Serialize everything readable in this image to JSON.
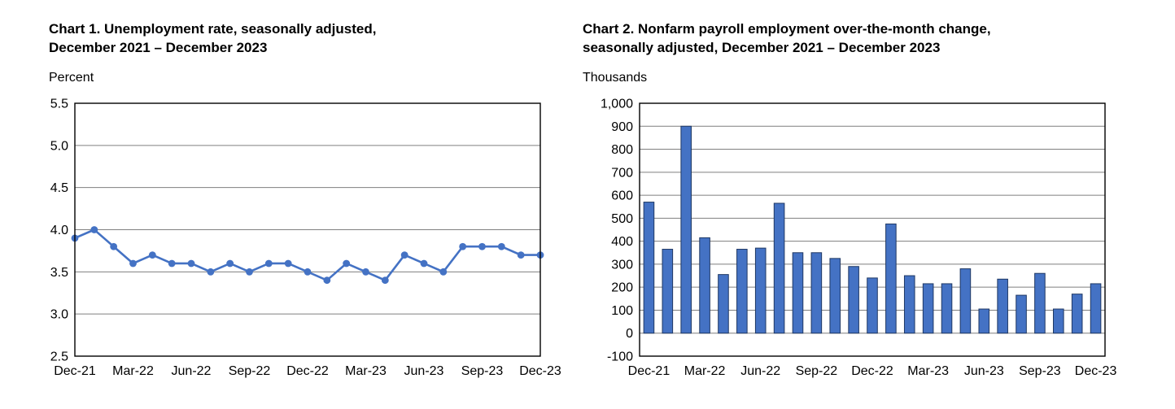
{
  "charts": [
    {
      "title_line1": "Chart 1. Unemployment rate, seasonally adjusted,",
      "title_line2": "December 2021 – December 2023",
      "unit_label": "Percent"
    },
    {
      "title_line1": "Chart 2. Nonfarm payroll employment over-the-month change,",
      "title_line2": "seasonally adjusted, December 2021 – December 2023",
      "unit_label": "Thousands"
    }
  ],
  "chart_data": [
    {
      "type": "line",
      "title": "Chart 1. Unemployment rate, seasonally adjusted, December 2021 – December 2023",
      "ylabel": "Percent",
      "xlabel": "",
      "categories": [
        "Dec-21",
        "Jan-22",
        "Feb-22",
        "Mar-22",
        "Apr-22",
        "May-22",
        "Jun-22",
        "Jul-22",
        "Aug-22",
        "Sep-22",
        "Oct-22",
        "Nov-22",
        "Dec-22",
        "Jan-23",
        "Feb-23",
        "Mar-23",
        "Apr-23",
        "May-23",
        "Jun-23",
        "Jul-23",
        "Aug-23",
        "Sep-23",
        "Oct-23",
        "Nov-23",
        "Dec-23"
      ],
      "values": [
        3.9,
        4.0,
        3.8,
        3.6,
        3.7,
        3.6,
        3.6,
        3.5,
        3.6,
        3.5,
        3.6,
        3.6,
        3.5,
        3.4,
        3.6,
        3.5,
        3.4,
        3.7,
        3.6,
        3.5,
        3.8,
        3.8,
        3.8,
        3.7,
        3.7
      ],
      "ylim": [
        2.5,
        5.5
      ],
      "yticks": [
        2.5,
        3.0,
        3.5,
        4.0,
        4.5,
        5.0,
        5.5
      ],
      "ytick_labels": [
        "2.5",
        "3.0",
        "3.5",
        "4.0",
        "4.5",
        "5.0",
        "5.5"
      ],
      "xtick_labels": [
        "Dec-21",
        "Mar-22",
        "Jun-22",
        "Sep-22",
        "Dec-22",
        "Mar-23",
        "Jun-23",
        "Sep-23",
        "Dec-23"
      ],
      "xtick_indices": [
        0,
        3,
        6,
        9,
        12,
        15,
        18,
        21,
        24
      ],
      "line_color": "#4472C4",
      "marker": "circle",
      "grid": "horizontal",
      "gridline_color": "#7f7f7f",
      "border_color": "#000000",
      "legend": "none"
    },
    {
      "type": "bar",
      "title": "Chart 2. Nonfarm payroll employment over-the-month change, seasonally adjusted, December 2021 – December 2023",
      "ylabel": "Thousands",
      "xlabel": "",
      "categories": [
        "Dec-21",
        "Jan-22",
        "Feb-22",
        "Mar-22",
        "Apr-22",
        "May-22",
        "Jun-22",
        "Jul-22",
        "Aug-22",
        "Sep-22",
        "Oct-22",
        "Nov-22",
        "Dec-22",
        "Jan-23",
        "Feb-23",
        "Mar-23",
        "Apr-23",
        "May-23",
        "Jun-23",
        "Jul-23",
        "Aug-23",
        "Sep-23",
        "Oct-23",
        "Nov-23",
        "Dec-23"
      ],
      "values": [
        570,
        365,
        900,
        415,
        255,
        365,
        370,
        565,
        350,
        350,
        325,
        290,
        240,
        475,
        250,
        215,
        215,
        280,
        105,
        235,
        165,
        260,
        105,
        170,
        215
      ],
      "ylim": [
        -100,
        1000
      ],
      "yticks": [
        -100,
        0,
        100,
        200,
        300,
        400,
        500,
        600,
        700,
        800,
        900,
        1000
      ],
      "ytick_labels": [
        "-100",
        "0",
        "100",
        "200",
        "300",
        "400",
        "500",
        "600",
        "700",
        "800",
        "900",
        "1,000"
      ],
      "xtick_labels": [
        "Dec-21",
        "Mar-22",
        "Jun-22",
        "Sep-22",
        "Dec-22",
        "Mar-23",
        "Jun-23",
        "Sep-23",
        "Dec-23"
      ],
      "xtick_indices": [
        0,
        3,
        6,
        9,
        12,
        15,
        18,
        21,
        24
      ],
      "bar_color": "#4472C4",
      "bar_border_color": "#1F3864",
      "grid": "horizontal",
      "gridline_color": "#7f7f7f",
      "border_color": "#000000",
      "legend": "none"
    }
  ]
}
